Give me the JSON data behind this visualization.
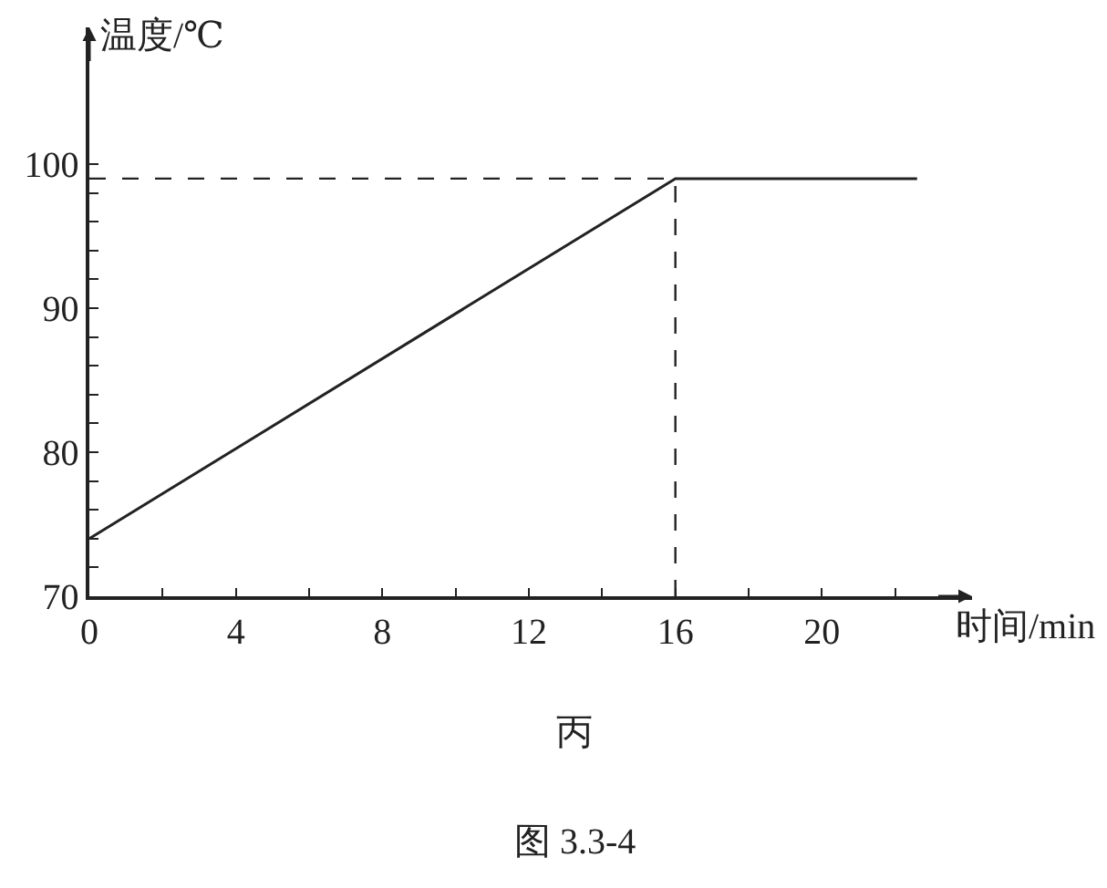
{
  "chart_data": {
    "type": "line",
    "xlabel": "时间/min",
    "ylabel": "温度/℃",
    "x": [
      0,
      16,
      22.6
    ],
    "series": [
      {
        "color": "#222222",
        "values": [
          74,
          99,
          99
        ]
      }
    ],
    "xlim": [
      0,
      24.1
    ],
    "ylim": [
      70,
      109.5
    ],
    "xticks": [
      0,
      {
        "value": 2,
        "label": null
      },
      4,
      {
        "value": 6,
        "label": null
      },
      8,
      {
        "value": 10,
        "label": null
      },
      12,
      {
        "value": 14,
        "label": null
      },
      16,
      {
        "value": 18,
        "label": null
      },
      20,
      {
        "value": 22,
        "label": null
      }
    ],
    "yticks": [
      70,
      {
        "value": 72,
        "label": null
      },
      {
        "value": 74,
        "label": null
      },
      {
        "value": 76,
        "label": null
      },
      {
        "value": 78,
        "label": null
      },
      80,
      {
        "value": 82,
        "label": null
      },
      {
        "value": 84,
        "label": null
      },
      {
        "value": 86,
        "label": null
      },
      {
        "value": 88,
        "label": null
      },
      90,
      {
        "value": 92,
        "label": null
      },
      {
        "value": 94,
        "label": null
      },
      {
        "value": 96,
        "label": null
      },
      {
        "value": 98,
        "label": null
      },
      100
    ],
    "ref_lines": [
      {
        "axis": "y",
        "value": 99,
        "line_style": "dashed",
        "color": "#222222"
      },
      {
        "axis": "x",
        "value": 16,
        "line_style": "dashed",
        "color": "#222222"
      }
    ],
    "annotations": [
      "丙",
      "图 3.3-4"
    ],
    "marker": "none",
    "line_style": "solid"
  }
}
